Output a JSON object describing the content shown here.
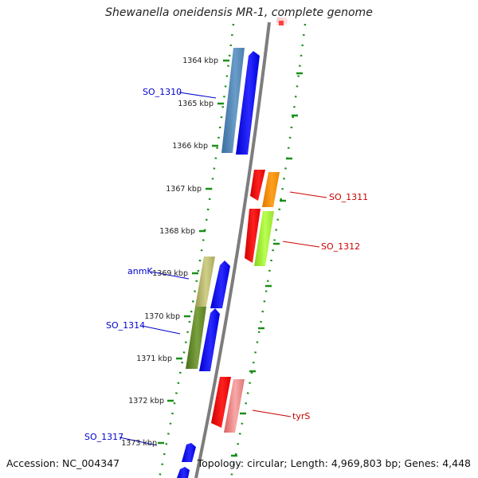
{
  "title": "Shewanella oneidensis MR-1, complete genome",
  "footer": {
    "accession": "Accession: NC_004347",
    "stats": "Topology: circular; Length: 4,969,803 bp; Genes: 4,448"
  },
  "ticks": [
    "1364 kbp",
    "1365 kbp",
    "1366 kbp",
    "1367 kbp",
    "1368 kbp",
    "1369 kbp",
    "1370 kbp",
    "1371 kbp",
    "1372 kbp",
    "1373 kbp"
  ],
  "gene_labels": [
    {
      "text": "SO_1310",
      "color": "#0000cc"
    },
    {
      "text": "anmK",
      "color": "#0000cc"
    },
    {
      "text": "SO_1314",
      "color": "#0000cc"
    },
    {
      "text": "SO_1317",
      "color": "#0000cc"
    },
    {
      "text": "SO_1311",
      "color": "#cc0000"
    },
    {
      "text": "SO_1312",
      "color": "#cc0000"
    },
    {
      "text": "tyrS",
      "color": "#cc0000"
    }
  ],
  "colors": {
    "backbone": "#7d7d7d",
    "dots": "#1a8f1a",
    "forward_strand": "#0000ff",
    "reverse_strand": "#ff0000"
  }
}
